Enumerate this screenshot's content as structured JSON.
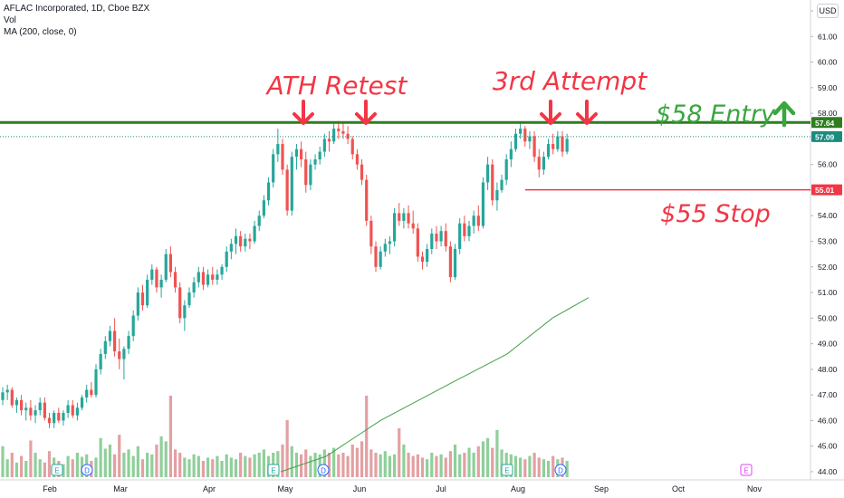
{
  "header": {
    "title": "AFLAC Incorporated, 1D, Cboe BZX",
    "vol_label": "Vol",
    "ma_label": "MA (200, close, 0)",
    "currency": "USD"
  },
  "colors": {
    "up": "#26a69a",
    "down": "#ef5350",
    "vol_up": "#8fcf9a",
    "vol_down": "#e3a0a3",
    "entry_line": "#2e7d1e",
    "stop_line": "#f23645",
    "ma": "#43a047",
    "annotation_red": "#f23645",
    "annotation_green": "#3aa63f",
    "price_tag_current": "#1b8b7e"
  },
  "chart_data": {
    "type": "candlestick",
    "y_axis": {
      "min": 44.0,
      "max": 62.0,
      "tick_step": 1.0
    },
    "x_ticks": [
      "Feb",
      "Mar",
      "Apr",
      "May",
      "Jun",
      "Jul",
      "Aug",
      "Sep",
      "Oct",
      "Nov"
    ],
    "levels": [
      {
        "name": "entry",
        "price": 57.64,
        "label": "57.64"
      },
      {
        "name": "last",
        "price": 57.09,
        "label": "57.09"
      },
      {
        "name": "stop",
        "price": 55.01,
        "label": "55.01"
      }
    ],
    "annotations": [
      {
        "text": "ATH Retest",
        "color": "red"
      },
      {
        "text": "3rd Attempt",
        "color": "red"
      },
      {
        "text": "$58 Entry",
        "color": "green"
      },
      {
        "text": "$55 Stop",
        "color": "red"
      }
    ],
    "event_markers": [
      "E",
      "D",
      "E",
      "D",
      "E",
      "D",
      "E"
    ],
    "ma200": [
      [
        310,
        44.0
      ],
      [
        360,
        44.6
      ],
      [
        420,
        46.0
      ],
      [
        500,
        47.5
      ],
      [
        560,
        48.6
      ],
      [
        610,
        50.0
      ],
      [
        650,
        50.8
      ]
    ],
    "ohlc": [
      [
        46.8,
        47.3,
        46.6,
        47.1
      ],
      [
        47.1,
        47.4,
        46.8,
        47.2
      ],
      [
        47.2,
        47.3,
        46.5,
        46.6
      ],
      [
        46.6,
        46.9,
        46.3,
        46.8
      ],
      [
        46.8,
        47.0,
        46.2,
        46.4
      ],
      [
        46.4,
        46.7,
        46.0,
        46.5
      ],
      [
        46.5,
        46.8,
        46.0,
        46.2
      ],
      [
        46.2,
        46.6,
        45.9,
        46.4
      ],
      [
        46.4,
        46.9,
        46.2,
        46.7
      ],
      [
        46.7,
        46.9,
        46.0,
        46.1
      ],
      [
        46.1,
        46.3,
        45.7,
        45.9
      ],
      [
        45.9,
        46.4,
        45.7,
        46.3
      ],
      [
        46.3,
        46.5,
        45.9,
        46.0
      ],
      [
        46.0,
        46.4,
        45.8,
        46.3
      ],
      [
        46.3,
        46.8,
        46.1,
        46.6
      ],
      [
        46.6,
        46.8,
        46.1,
        46.2
      ],
      [
        46.2,
        46.7,
        46.0,
        46.5
      ],
      [
        46.5,
        47.0,
        46.4,
        46.9
      ],
      [
        46.9,
        47.4,
        46.7,
        47.2
      ],
      [
        47.2,
        47.5,
        46.9,
        47.0
      ],
      [
        47.0,
        48.2,
        46.9,
        48.0
      ],
      [
        48.0,
        48.8,
        47.8,
        48.6
      ],
      [
        48.6,
        49.3,
        48.4,
        49.1
      ],
      [
        49.1,
        49.7,
        48.9,
        49.5
      ],
      [
        49.5,
        50.0,
        48.5,
        48.7
      ],
      [
        48.7,
        49.2,
        48.0,
        48.4
      ],
      [
        48.4,
        48.9,
        47.6,
        48.8
      ],
      [
        48.8,
        49.5,
        48.6,
        49.3
      ],
      [
        49.3,
        50.3,
        49.1,
        50.1
      ],
      [
        50.1,
        51.2,
        49.9,
        51.0
      ],
      [
        51.0,
        51.3,
        50.3,
        50.5
      ],
      [
        50.5,
        51.7,
        50.4,
        51.5
      ],
      [
        51.5,
        52.1,
        51.3,
        51.9
      ],
      [
        51.9,
        52.0,
        51.0,
        51.2
      ],
      [
        51.2,
        51.7,
        50.8,
        51.5
      ],
      [
        51.5,
        52.7,
        51.4,
        52.5
      ],
      [
        52.5,
        52.8,
        51.6,
        51.8
      ],
      [
        51.8,
        52.0,
        51.0,
        51.2
      ],
      [
        51.2,
        51.4,
        49.8,
        50.0
      ],
      [
        50.0,
        50.7,
        49.5,
        50.5
      ],
      [
        50.5,
        51.2,
        50.4,
        51.0
      ],
      [
        51.0,
        51.6,
        50.8,
        51.4
      ],
      [
        51.4,
        52.0,
        51.2,
        51.8
      ],
      [
        51.8,
        52.0,
        51.1,
        51.3
      ],
      [
        51.3,
        51.9,
        51.2,
        51.7
      ],
      [
        51.7,
        52.0,
        51.3,
        51.5
      ],
      [
        51.5,
        51.9,
        51.3,
        51.7
      ],
      [
        51.7,
        52.1,
        51.5,
        52.0
      ],
      [
        52.0,
        52.8,
        51.8,
        52.6
      ],
      [
        52.6,
        53.1,
        52.3,
        52.9
      ],
      [
        52.9,
        53.5,
        52.5,
        53.2
      ],
      [
        53.2,
        53.4,
        52.6,
        52.8
      ],
      [
        52.8,
        53.3,
        52.6,
        53.1
      ],
      [
        53.1,
        53.3,
        52.7,
        53.0
      ],
      [
        53.0,
        53.8,
        52.9,
        53.6
      ],
      [
        53.6,
        54.2,
        53.4,
        54.0
      ],
      [
        54.0,
        54.8,
        53.9,
        54.6
      ],
      [
        54.6,
        55.5,
        54.4,
        55.3
      ],
      [
        55.3,
        56.6,
        55.1,
        56.4
      ],
      [
        56.4,
        57.4,
        56.1,
        56.8
      ],
      [
        56.8,
        57.0,
        55.6,
        55.8
      ],
      [
        55.8,
        56.0,
        54.0,
        54.2
      ],
      [
        54.2,
        56.5,
        54.0,
        56.3
      ],
      [
        56.3,
        56.8,
        55.8,
        56.6
      ],
      [
        56.6,
        56.9,
        55.9,
        56.2
      ],
      [
        56.2,
        56.5,
        54.9,
        55.2
      ],
      [
        55.2,
        56.2,
        55.0,
        56.0
      ],
      [
        56.0,
        56.4,
        55.8,
        56.2
      ],
      [
        56.2,
        56.7,
        56.0,
        56.5
      ],
      [
        56.5,
        57.2,
        56.3,
        57.0
      ],
      [
        57.0,
        57.3,
        56.5,
        56.9
      ],
      [
        56.9,
        57.6,
        56.8,
        57.4
      ],
      [
        57.4,
        57.7,
        57.0,
        57.3
      ],
      [
        57.3,
        57.6,
        57.0,
        57.2
      ],
      [
        57.2,
        57.5,
        56.8,
        57.0
      ],
      [
        57.0,
        57.1,
        56.2,
        56.4
      ],
      [
        56.4,
        56.6,
        55.8,
        56.0
      ],
      [
        56.0,
        56.2,
        55.2,
        55.4
      ],
      [
        55.4,
        55.6,
        53.6,
        53.8
      ],
      [
        53.8,
        54.0,
        52.5,
        52.8
      ],
      [
        52.8,
        53.0,
        51.8,
        52.0
      ],
      [
        52.0,
        52.8,
        51.9,
        52.6
      ],
      [
        52.6,
        53.1,
        52.4,
        52.9
      ],
      [
        52.9,
        53.2,
        52.5,
        53.0
      ],
      [
        53.0,
        54.3,
        52.8,
        54.1
      ],
      [
        54.1,
        54.5,
        53.6,
        53.8
      ],
      [
        53.8,
        54.3,
        53.5,
        54.1
      ],
      [
        54.1,
        54.4,
        53.5,
        53.7
      ],
      [
        53.7,
        54.2,
        53.3,
        53.5
      ],
      [
        53.5,
        53.7,
        52.2,
        52.4
      ],
      [
        52.4,
        52.6,
        51.9,
        52.2
      ],
      [
        52.2,
        52.9,
        52.0,
        52.7
      ],
      [
        52.7,
        53.5,
        52.5,
        53.3
      ],
      [
        53.3,
        53.6,
        52.7,
        53.0
      ],
      [
        53.0,
        53.6,
        52.8,
        53.4
      ],
      [
        53.4,
        53.7,
        52.6,
        52.8
      ],
      [
        52.8,
        53.0,
        51.4,
        51.6
      ],
      [
        51.6,
        52.9,
        51.5,
        52.7
      ],
      [
        52.7,
        53.9,
        52.5,
        53.7
      ],
      [
        53.7,
        54.0,
        53.0,
        53.2
      ],
      [
        53.2,
        53.8,
        53.0,
        53.6
      ],
      [
        53.6,
        54.2,
        53.3,
        54.0
      ],
      [
        54.0,
        54.4,
        53.4,
        53.6
      ],
      [
        53.6,
        55.5,
        53.5,
        55.3
      ],
      [
        55.3,
        56.3,
        55.0,
        56.0
      ],
      [
        56.0,
        56.2,
        54.4,
        54.6
      ],
      [
        54.6,
        55.3,
        54.2,
        55.0
      ],
      [
        55.0,
        55.6,
        54.9,
        55.4
      ],
      [
        55.4,
        56.4,
        55.2,
        56.2
      ],
      [
        56.2,
        56.9,
        55.9,
        56.6
      ],
      [
        56.6,
        57.4,
        56.5,
        57.2
      ],
      [
        57.2,
        57.6,
        57.0,
        57.4
      ],
      [
        57.4,
        57.5,
        56.7,
        56.9
      ],
      [
        56.9,
        57.3,
        56.6,
        57.1
      ],
      [
        57.1,
        57.3,
        56.1,
        56.3
      ],
      [
        56.3,
        56.6,
        55.5,
        55.8
      ],
      [
        55.8,
        56.5,
        55.6,
        56.3
      ],
      [
        56.3,
        57.0,
        56.2,
        56.8
      ],
      [
        56.8,
        57.2,
        56.4,
        56.6
      ],
      [
        56.6,
        57.3,
        56.5,
        57.1
      ],
      [
        57.1,
        57.3,
        56.3,
        56.5
      ],
      [
        56.5,
        57.2,
        56.4,
        57.0
      ]
    ],
    "volume": [
      38,
      22,
      30,
      18,
      26,
      20,
      45,
      30,
      22,
      18,
      32,
      24,
      20,
      16,
      26,
      22,
      30,
      25,
      28,
      20,
      24,
      48,
      35,
      40,
      28,
      52,
      30,
      34,
      26,
      38,
      22,
      30,
      28,
      40,
      50,
      44,
      100,
      34,
      30,
      24,
      22,
      28,
      26,
      20,
      24,
      22,
      26,
      20,
      28,
      24,
      22,
      30,
      26,
      24,
      28,
      30,
      34,
      26,
      30,
      32,
      40,
      70,
      38,
      30,
      28,
      34,
      26,
      30,
      28,
      34,
      30,
      36,
      28,
      30,
      26,
      40,
      36,
      44,
      100,
      34,
      30,
      28,
      32,
      26,
      28,
      60,
      40,
      30,
      26,
      28,
      24,
      22,
      30,
      26,
      28,
      24,
      32,
      40,
      28,
      30,
      36,
      30,
      38,
      44,
      48,
      36,
      58,
      34,
      30,
      28,
      26,
      24,
      22,
      26,
      30,
      24,
      22,
      20,
      26,
      22,
      24,
      20
    ]
  }
}
